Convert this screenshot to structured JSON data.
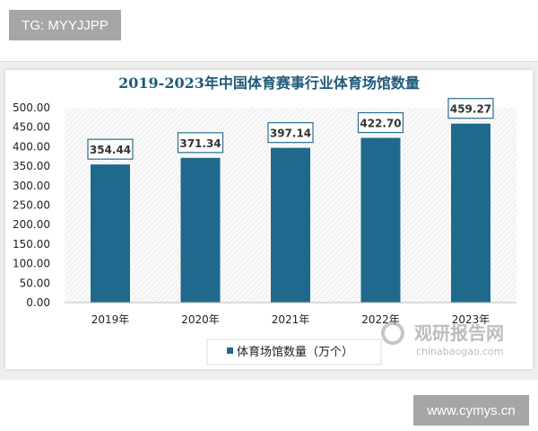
{
  "tags": {
    "top": "TG: MYYJJPP",
    "bottom": "www.cymys.cn"
  },
  "watermark": {
    "cn": "观研报告网",
    "en": "chinabaogao.com"
  },
  "chart_data": {
    "type": "bar",
    "title": "2019-2023年中国体育赛事行业体育场馆数量",
    "categories": [
      "2019年",
      "2020年",
      "2021年",
      "2022年",
      "2023年"
    ],
    "series": [
      {
        "name": "体育场馆数量（万个）",
        "values": [
          354.44,
          371.34,
          397.14,
          422.7,
          459.27
        ],
        "color": "#1f6a8c"
      }
    ],
    "data_labels": [
      "354.44",
      "371.34",
      "397.14",
      "422.70",
      "459.27"
    ],
    "ylim": [
      0,
      500
    ],
    "yticks": [
      "0.00",
      "50.00",
      "100.00",
      "150.00",
      "200.00",
      "250.00",
      "300.00",
      "350.00",
      "400.00",
      "450.00",
      "500.00"
    ],
    "legend": "bottom",
    "grid": false
  }
}
